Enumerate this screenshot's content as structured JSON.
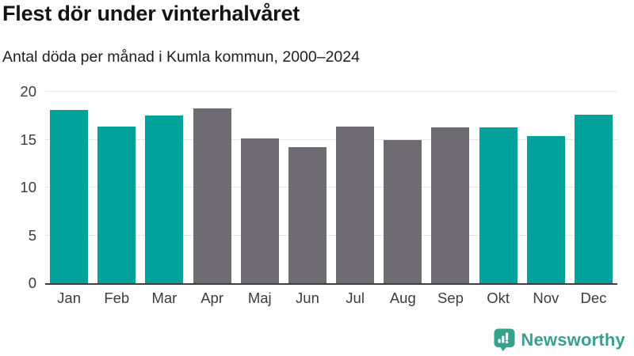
{
  "header": {
    "title": "Flest dör under vinterhalvåret",
    "subtitle": "Antal döda per månad i Kumla kommun, 2000–2024"
  },
  "chart_data": {
    "type": "bar",
    "title": "Flest dör under vinterhalvåret",
    "subtitle": "Antal döda per månad i Kumla kommun, 2000–2024",
    "categories": [
      "Jan",
      "Feb",
      "Mar",
      "Apr",
      "Maj",
      "Jun",
      "Jul",
      "Aug",
      "Sep",
      "Okt",
      "Nov",
      "Dec"
    ],
    "values": [
      18.1,
      16.4,
      17.5,
      18.3,
      15.1,
      14.2,
      16.4,
      15.0,
      16.3,
      16.3,
      15.4,
      17.6
    ],
    "bar_color_keys": [
      "teal",
      "teal",
      "teal",
      "gray",
      "gray",
      "gray",
      "gray",
      "gray",
      "gray",
      "teal",
      "teal",
      "teal"
    ],
    "colors": {
      "teal": "#00a29a",
      "gray": "#6e6c72"
    },
    "xlabel": "",
    "ylabel": "",
    "ylim": [
      0,
      20
    ],
    "yticks": [
      0,
      5,
      10,
      15,
      20
    ],
    "grid": true,
    "legend": "none"
  },
  "footer": {
    "brand": "Newsworthy",
    "brand_color": "#38a18e"
  }
}
